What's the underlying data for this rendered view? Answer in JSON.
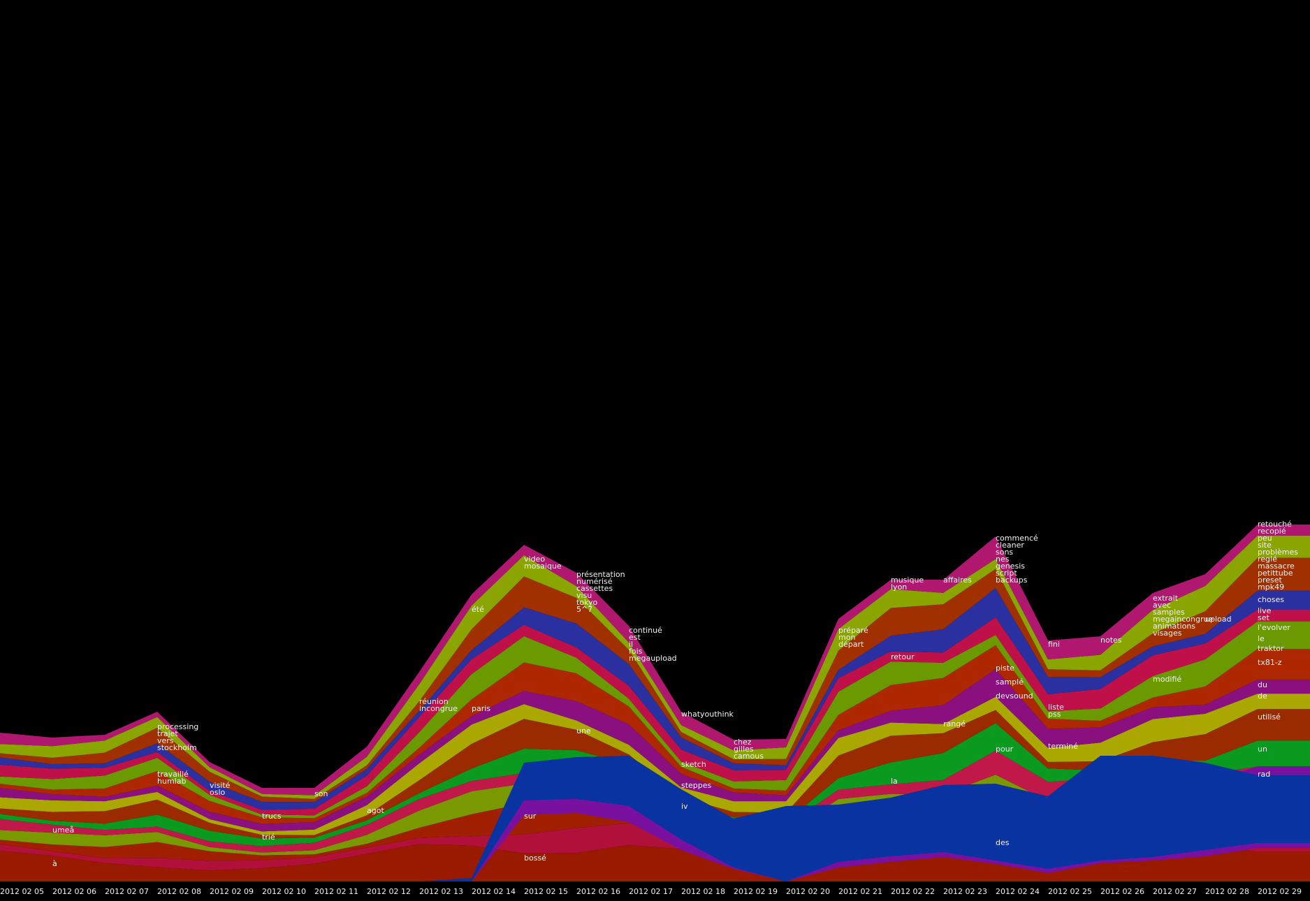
{
  "chart_data": {
    "type": "area",
    "x": [
      "2012 02 05",
      "2012 02 06",
      "2012 02 07",
      "2012 02 08",
      "2012 02 09",
      "2012 02 10",
      "2012 02 11",
      "2012 02 12",
      "2012 02 13",
      "2012 02 14",
      "2012 02 15",
      "2012 02 16",
      "2012 02 17",
      "2012 02 18",
      "2012 02 19",
      "2012 02 20",
      "2012 02 21",
      "2012 02 22",
      "2012 02 23",
      "2012 02 24",
      "2012 02 25",
      "2012 02 26",
      "2012 02 27",
      "2012 02 28",
      "2012 02 29"
    ],
    "ylim": [
      0,
      520
    ],
    "grid": false,
    "legend": "none",
    "colors": [
      "#9a1a00",
      "#b0103a",
      "#a01f00",
      "#7a9800",
      "#c01848",
      "#0a9a20",
      "#9a2a00",
      "#aaa800",
      "#8a1080",
      "#ad2800",
      "#6a9a00",
      "#c0104a",
      "#2a30a0",
      "#a03000",
      "#8aa400",
      "#b01870"
    ],
    "series": [
      {
        "name": "",
        "values": [
          82,
          80,
          82,
          95,
          80,
          65,
          45,
          45,
          55,
          68,
          140,
          120,
          95,
          65,
          55,
          58,
          70,
          72,
          70,
          72,
          70,
          80,
          90,
          100,
          105
        ]
      },
      {
        "name": "",
        "values": [
          0,
          0,
          0,
          0,
          0,
          0,
          0,
          0,
          0,
          0,
          0,
          0,
          0,
          0,
          0,
          0,
          0,
          0,
          0,
          0,
          0,
          0,
          0,
          0,
          0
        ]
      },
      {
        "name": "",
        "values": [
          30,
          24,
          25,
          40,
          30,
          10,
          2,
          16,
          18,
          25,
          18,
          8,
          5,
          6,
          10,
          30,
          50,
          62,
          70,
          50,
          42,
          40,
          72,
          70,
          54
        ]
      },
      {
        "name": "",
        "values": [
          0,
          0,
          0,
          0,
          0,
          0,
          0,
          0,
          0,
          0,
          0,
          0,
          0,
          0,
          0,
          0,
          0,
          0,
          0,
          0,
          0,
          0,
          0,
          0,
          0
        ]
      }
    ],
    "x_tick_labels": [
      "2012 02 05",
      "2012 02 06",
      "2012 02 07",
      "2012 02 08",
      "2012 02 09",
      "2012 02 10",
      "2012 02 11",
      "2012 02 12",
      "2012 02 13",
      "2012 02 14",
      "2012 02 15",
      "2012 02 16",
      "2012 02 17",
      "2012 02 18",
      "2012 02 19",
      "2012 02 20",
      "2012 02 21",
      "2012 02 22",
      "2012 02 23",
      "2012 02 24",
      "2012 02 25",
      "2012 02 26",
      "2012 02 27",
      "2012 02 28",
      "2012 02 29"
    ],
    "totals": [
      213,
      206,
      210,
      243,
      171,
      134,
      134,
      193,
      300,
      411,
      482,
      442,
      366,
      243,
      203,
      204,
      376,
      432,
      432,
      494,
      345,
      351,
      413,
      440,
      511
    ],
    "bands": {
      "blue": {
        "color": "#0833a0",
        "start": [
          0,
          0,
          0,
          0,
          0,
          0,
          0,
          0,
          0,
          0,
          116,
          118,
          108,
          60,
          20,
          0,
          28,
          36,
          42,
          30,
          18,
          30,
          35,
          45,
          55
        ],
        "top": [
          0,
          0,
          0,
          0,
          0,
          0,
          0,
          0,
          0,
          5,
          170,
          178,
          180,
          132,
          90,
          108,
          110,
          120,
          138,
          140,
          122,
          180,
          180,
          170,
          152
        ]
      },
      "purple": {
        "color": "#7a10a0",
        "start": [
          0,
          0,
          0,
          0,
          0,
          0,
          0,
          0,
          0,
          0,
          95,
          98,
          85,
          45,
          18,
          0,
          20,
          28,
          35,
          25,
          12,
          26,
          30,
          36,
          48
        ],
        "top": [
          0,
          0,
          0,
          0,
          0,
          0,
          0,
          0,
          0,
          0,
          120,
          124,
          114,
          70,
          24,
          0,
          36,
          44,
          52,
          42,
          35,
          60,
          100,
          140,
          165
        ]
      }
    },
    "words": [
      {
        "t": "à",
        "x": 0,
        "y": 22
      },
      {
        "t": "umeå",
        "x": 0,
        "y": 70
      },
      {
        "t": "travaillé",
        "x": 3,
        "y": 150
      },
      {
        "t": "humlab",
        "x": 3,
        "y": 140
      },
      {
        "t": "processing",
        "x": 3,
        "y": 218
      },
      {
        "t": "trajet",
        "x": 3,
        "y": 208
      },
      {
        "t": "vers",
        "x": 3,
        "y": 198
      },
      {
        "t": "stockholm",
        "x": 3,
        "y": 188
      },
      {
        "t": "visité",
        "x": 4,
        "y": 134
      },
      {
        "t": "oslo",
        "x": 4,
        "y": 124
      },
      {
        "t": "trié",
        "x": 5,
        "y": 60
      },
      {
        "t": "trucs",
        "x": 5,
        "y": 90
      },
      {
        "t": "son",
        "x": 6,
        "y": 122
      },
      {
        "t": "agot",
        "x": 7,
        "y": 98
      },
      {
        "t": "réunion",
        "x": 8,
        "y": 254
      },
      {
        "t": "incongrue",
        "x": 8,
        "y": 244
      },
      {
        "t": "paris",
        "x": 9,
        "y": 244
      },
      {
        "t": "été",
        "x": 9,
        "y": 386
      },
      {
        "t": "video",
        "x": 10,
        "y": 458
      },
      {
        "t": "mosaique",
        "x": 10,
        "y": 448
      },
      {
        "t": "sur",
        "x": 10,
        "y": 90
      },
      {
        "t": "bossé",
        "x": 10,
        "y": 30
      },
      {
        "t": "présentation",
        "x": 11,
        "y": 436
      },
      {
        "t": "numérisé",
        "x": 11,
        "y": 426
      },
      {
        "t": "cassettes",
        "x": 11,
        "y": 416
      },
      {
        "t": "visu",
        "x": 11,
        "y": 406
      },
      {
        "t": "tokyo",
        "x": 11,
        "y": 396
      },
      {
        "t": "5^7",
        "x": 11,
        "y": 386
      },
      {
        "t": "une",
        "x": 11,
        "y": 212
      },
      {
        "t": "continué",
        "x": 12,
        "y": 356
      },
      {
        "t": "est",
        "x": 12,
        "y": 346
      },
      {
        "t": "il",
        "x": 12,
        "y": 336
      },
      {
        "t": "fois",
        "x": 12,
        "y": 326
      },
      {
        "t": "megaupload",
        "x": 12,
        "y": 316
      },
      {
        "t": "whatyouthink",
        "x": 13,
        "y": 236
      },
      {
        "t": "sketch",
        "x": 13,
        "y": 164
      },
      {
        "t": "steppes",
        "x": 13,
        "y": 134
      },
      {
        "t": "iv",
        "x": 13,
        "y": 104
      },
      {
        "t": "chez",
        "x": 14,
        "y": 196
      },
      {
        "t": "gilles",
        "x": 14,
        "y": 186
      },
      {
        "t": "camous",
        "x": 14,
        "y": 176
      },
      {
        "t": "préparé",
        "x": 16,
        "y": 356
      },
      {
        "t": "mon",
        "x": 16,
        "y": 346
      },
      {
        "t": "départ",
        "x": 16,
        "y": 336
      },
      {
        "t": "musique",
        "x": 17,
        "y": 428
      },
      {
        "t": "lyon",
        "x": 17,
        "y": 418
      },
      {
        "t": "retour",
        "x": 17,
        "y": 318
      },
      {
        "t": "la",
        "x": 17,
        "y": 140
      },
      {
        "t": "affaires",
        "x": 18,
        "y": 428
      },
      {
        "t": "rangé",
        "x": 18,
        "y": 222
      },
      {
        "t": "commencé",
        "x": 19,
        "y": 488
      },
      {
        "t": "cleaner",
        "x": 19,
        "y": 478
      },
      {
        "t": "sons",
        "x": 19,
        "y": 468
      },
      {
        "t": "nes",
        "x": 19,
        "y": 458
      },
      {
        "t": "genesis",
        "x": 19,
        "y": 448
      },
      {
        "t": "script",
        "x": 19,
        "y": 438
      },
      {
        "t": "backups",
        "x": 19,
        "y": 428
      },
      {
        "t": "piste",
        "x": 19,
        "y": 302
      },
      {
        "t": "samplé",
        "x": 19,
        "y": 282
      },
      {
        "t": "devsound",
        "x": 19,
        "y": 262
      },
      {
        "t": "pour",
        "x": 19,
        "y": 186
      },
      {
        "t": "des",
        "x": 19,
        "y": 52
      },
      {
        "t": "fini",
        "x": 20,
        "y": 336
      },
      {
        "t": "liste",
        "x": 20,
        "y": 246
      },
      {
        "t": "pss",
        "x": 20,
        "y": 236
      },
      {
        "t": "terminé",
        "x": 20,
        "y": 190
      },
      {
        "t": "notes",
        "x": 21,
        "y": 342
      },
      {
        "t": "extrait",
        "x": 22,
        "y": 402
      },
      {
        "t": "avec",
        "x": 22,
        "y": 392
      },
      {
        "t": "samples",
        "x": 22,
        "y": 382
      },
      {
        "t": "megaincongrue",
        "x": 22,
        "y": 372
      },
      {
        "t": "animations",
        "x": 22,
        "y": 362
      },
      {
        "t": "visages",
        "x": 22,
        "y": 352
      },
      {
        "t": "modifié",
        "x": 22,
        "y": 286
      },
      {
        "t": "upload",
        "x": 23,
        "y": 372
      },
      {
        "t": "retouché",
        "x": 24,
        "y": 508
      },
      {
        "t": "recopié",
        "x": 24,
        "y": 498
      },
      {
        "t": "peu",
        "x": 24,
        "y": 488
      },
      {
        "t": "site",
        "x": 24,
        "y": 478
      },
      {
        "t": "problèmes",
        "x": 24,
        "y": 468
      },
      {
        "t": "reglé",
        "x": 24,
        "y": 458
      },
      {
        "t": "massacre",
        "x": 24,
        "y": 448
      },
      {
        "t": "petittube",
        "x": 24,
        "y": 438
      },
      {
        "t": "preset",
        "x": 24,
        "y": 428
      },
      {
        "t": "mpk49",
        "x": 24,
        "y": 418
      },
      {
        "t": "choses",
        "x": 24,
        "y": 400
      },
      {
        "t": "live",
        "x": 24,
        "y": 384
      },
      {
        "t": "set",
        "x": 24,
        "y": 374
      },
      {
        "t": "l'evolver",
        "x": 24,
        "y": 360
      },
      {
        "t": "le",
        "x": 24,
        "y": 344
      },
      {
        "t": "traktor",
        "x": 24,
        "y": 330
      },
      {
        "t": "tx81-z",
        "x": 24,
        "y": 310
      },
      {
        "t": "du",
        "x": 24,
        "y": 278
      },
      {
        "t": "de",
        "x": 24,
        "y": 262
      },
      {
        "t": "utilisé",
        "x": 24,
        "y": 232
      },
      {
        "t": "un",
        "x": 24,
        "y": 186
      },
      {
        "t": "rad",
        "x": 24,
        "y": 150
      }
    ]
  }
}
